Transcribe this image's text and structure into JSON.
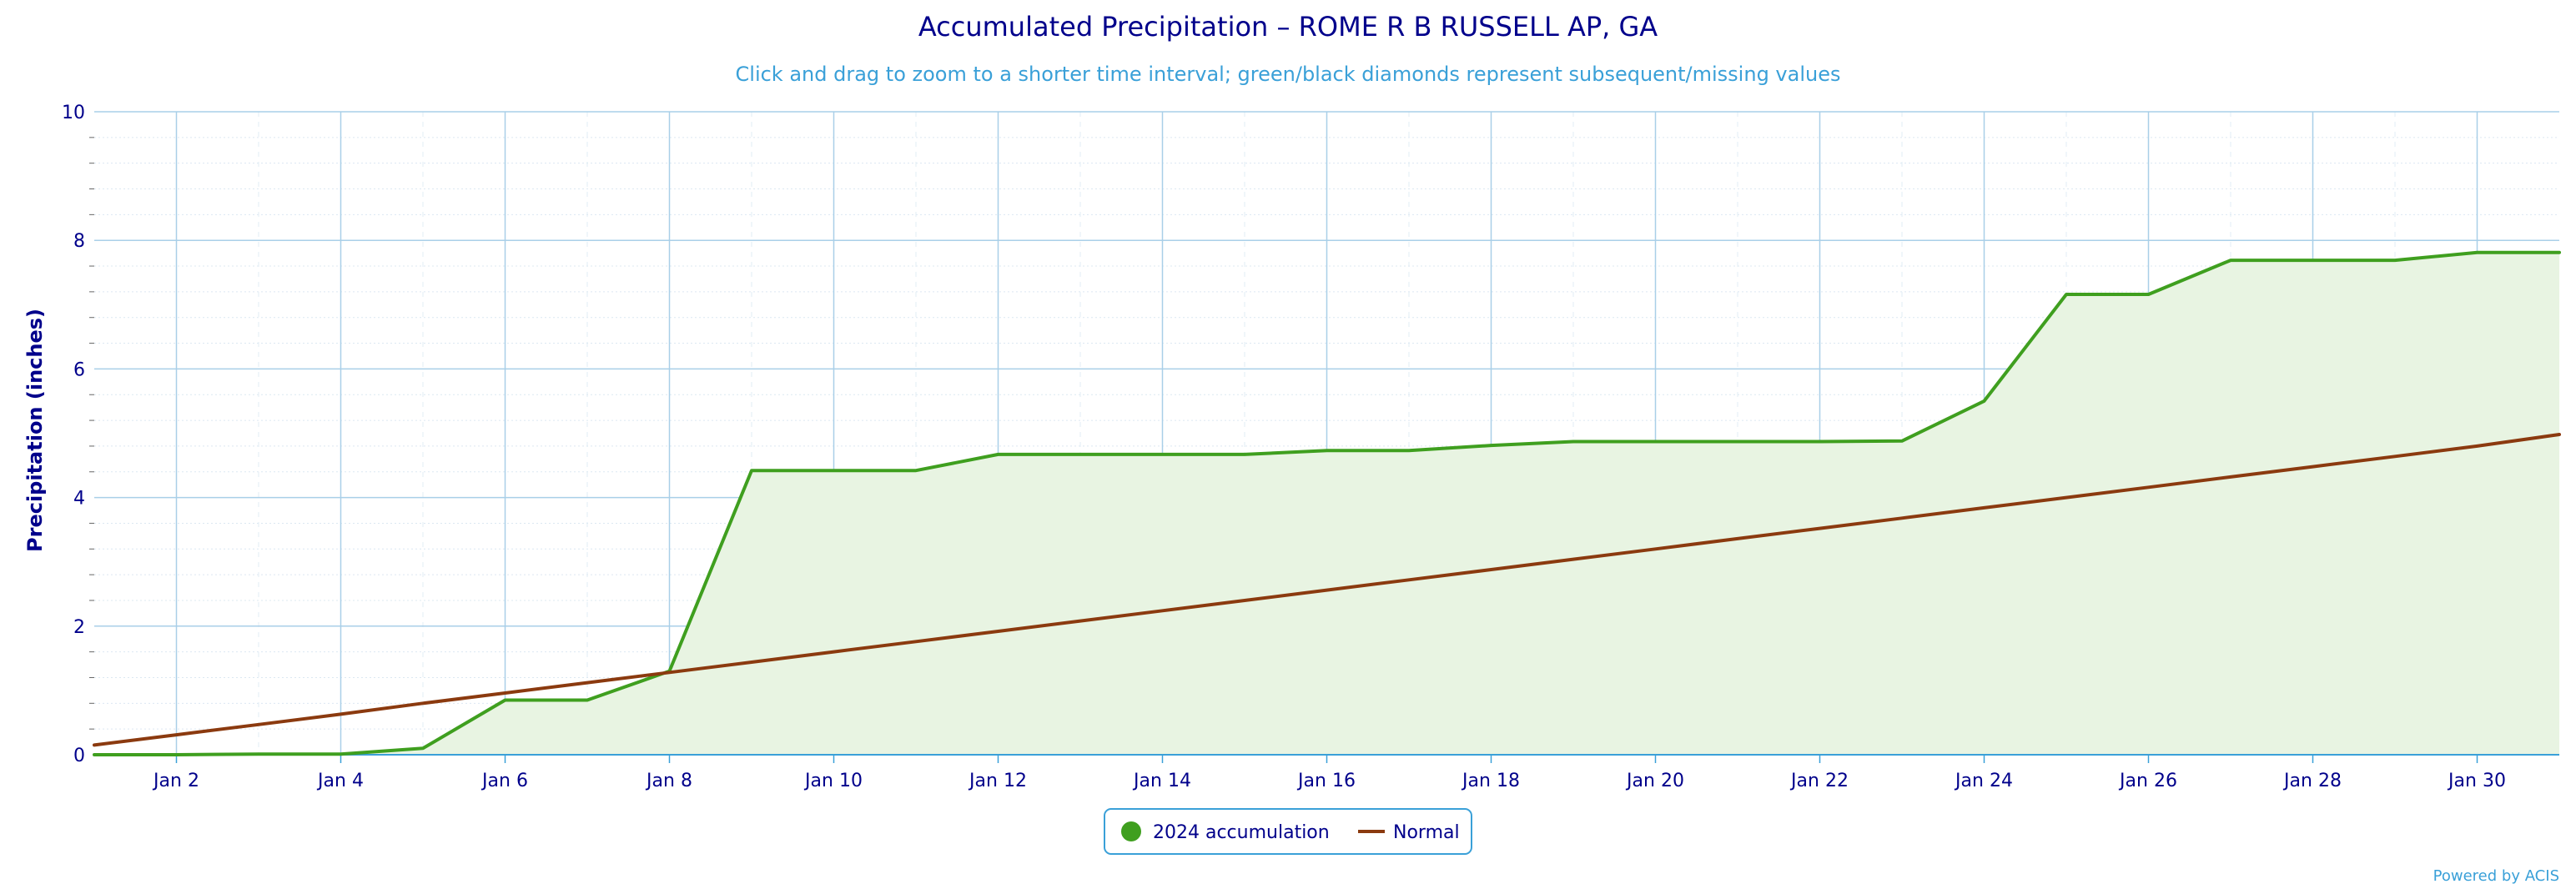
{
  "chart_data": {
    "type": "line",
    "title": "Accumulated Precipitation – ROME R B RUSSELL AP, GA",
    "subtitle": "Click and drag to zoom to a shorter time interval; green/black diamonds represent subsequent/missing values",
    "ylabel": "Precipitation (inches)",
    "xlabel": "",
    "ylim": [
      0,
      10
    ],
    "yticks": [
      "0",
      "2",
      "4",
      "6",
      "8",
      "10"
    ],
    "xticks": [
      "Jan 2",
      "Jan 4",
      "Jan 6",
      "Jan 8",
      "Jan 10",
      "Jan 12",
      "Jan 14",
      "Jan 16",
      "Jan 18",
      "Jan 20",
      "Jan 22",
      "Jan 24",
      "Jan 26",
      "Jan 28",
      "Jan 30"
    ],
    "xtick_days": [
      2,
      4,
      6,
      8,
      10,
      12,
      14,
      16,
      18,
      20,
      22,
      24,
      26,
      28,
      30
    ],
    "xlim_days": [
      1,
      31
    ],
    "grid": true,
    "legend_placement": "bottom-center",
    "series": [
      {
        "name": "2024 accumulation",
        "color": "#3f9f1f",
        "fill": "#e8f4e2",
        "days": [
          1,
          2,
          3,
          4,
          5,
          6,
          7,
          8,
          9,
          10,
          11,
          12,
          13,
          14,
          15,
          16,
          17,
          18,
          19,
          20,
          21,
          22,
          23,
          24,
          25,
          26,
          27,
          28,
          29,
          30,
          31
        ],
        "values": [
          0.0,
          0.0,
          0.01,
          0.01,
          0.1,
          0.85,
          0.85,
          1.3,
          4.42,
          4.42,
          4.42,
          4.67,
          4.67,
          4.67,
          4.67,
          4.73,
          4.73,
          4.81,
          4.87,
          4.87,
          4.87,
          4.87,
          4.88,
          5.5,
          7.16,
          7.16,
          7.69,
          7.69,
          7.69,
          7.81,
          7.81
        ]
      },
      {
        "name": "Normal",
        "color": "#8b3a0f",
        "days": [
          1,
          2,
          3,
          4,
          5,
          6,
          7,
          8,
          9,
          10,
          11,
          12,
          13,
          14,
          15,
          16,
          17,
          18,
          19,
          20,
          21,
          22,
          23,
          24,
          25,
          26,
          27,
          28,
          29,
          30,
          31
        ],
        "values": [
          0.15,
          0.31,
          0.47,
          0.63,
          0.8,
          0.96,
          1.12,
          1.28,
          1.44,
          1.6,
          1.76,
          1.92,
          2.08,
          2.24,
          2.4,
          2.56,
          2.72,
          2.88,
          3.04,
          3.2,
          3.36,
          3.52,
          3.68,
          3.84,
          4.0,
          4.16,
          4.32,
          4.48,
          4.64,
          4.8,
          4.98
        ]
      }
    ]
  },
  "footer": {
    "credit": "Powered by ACIS"
  }
}
